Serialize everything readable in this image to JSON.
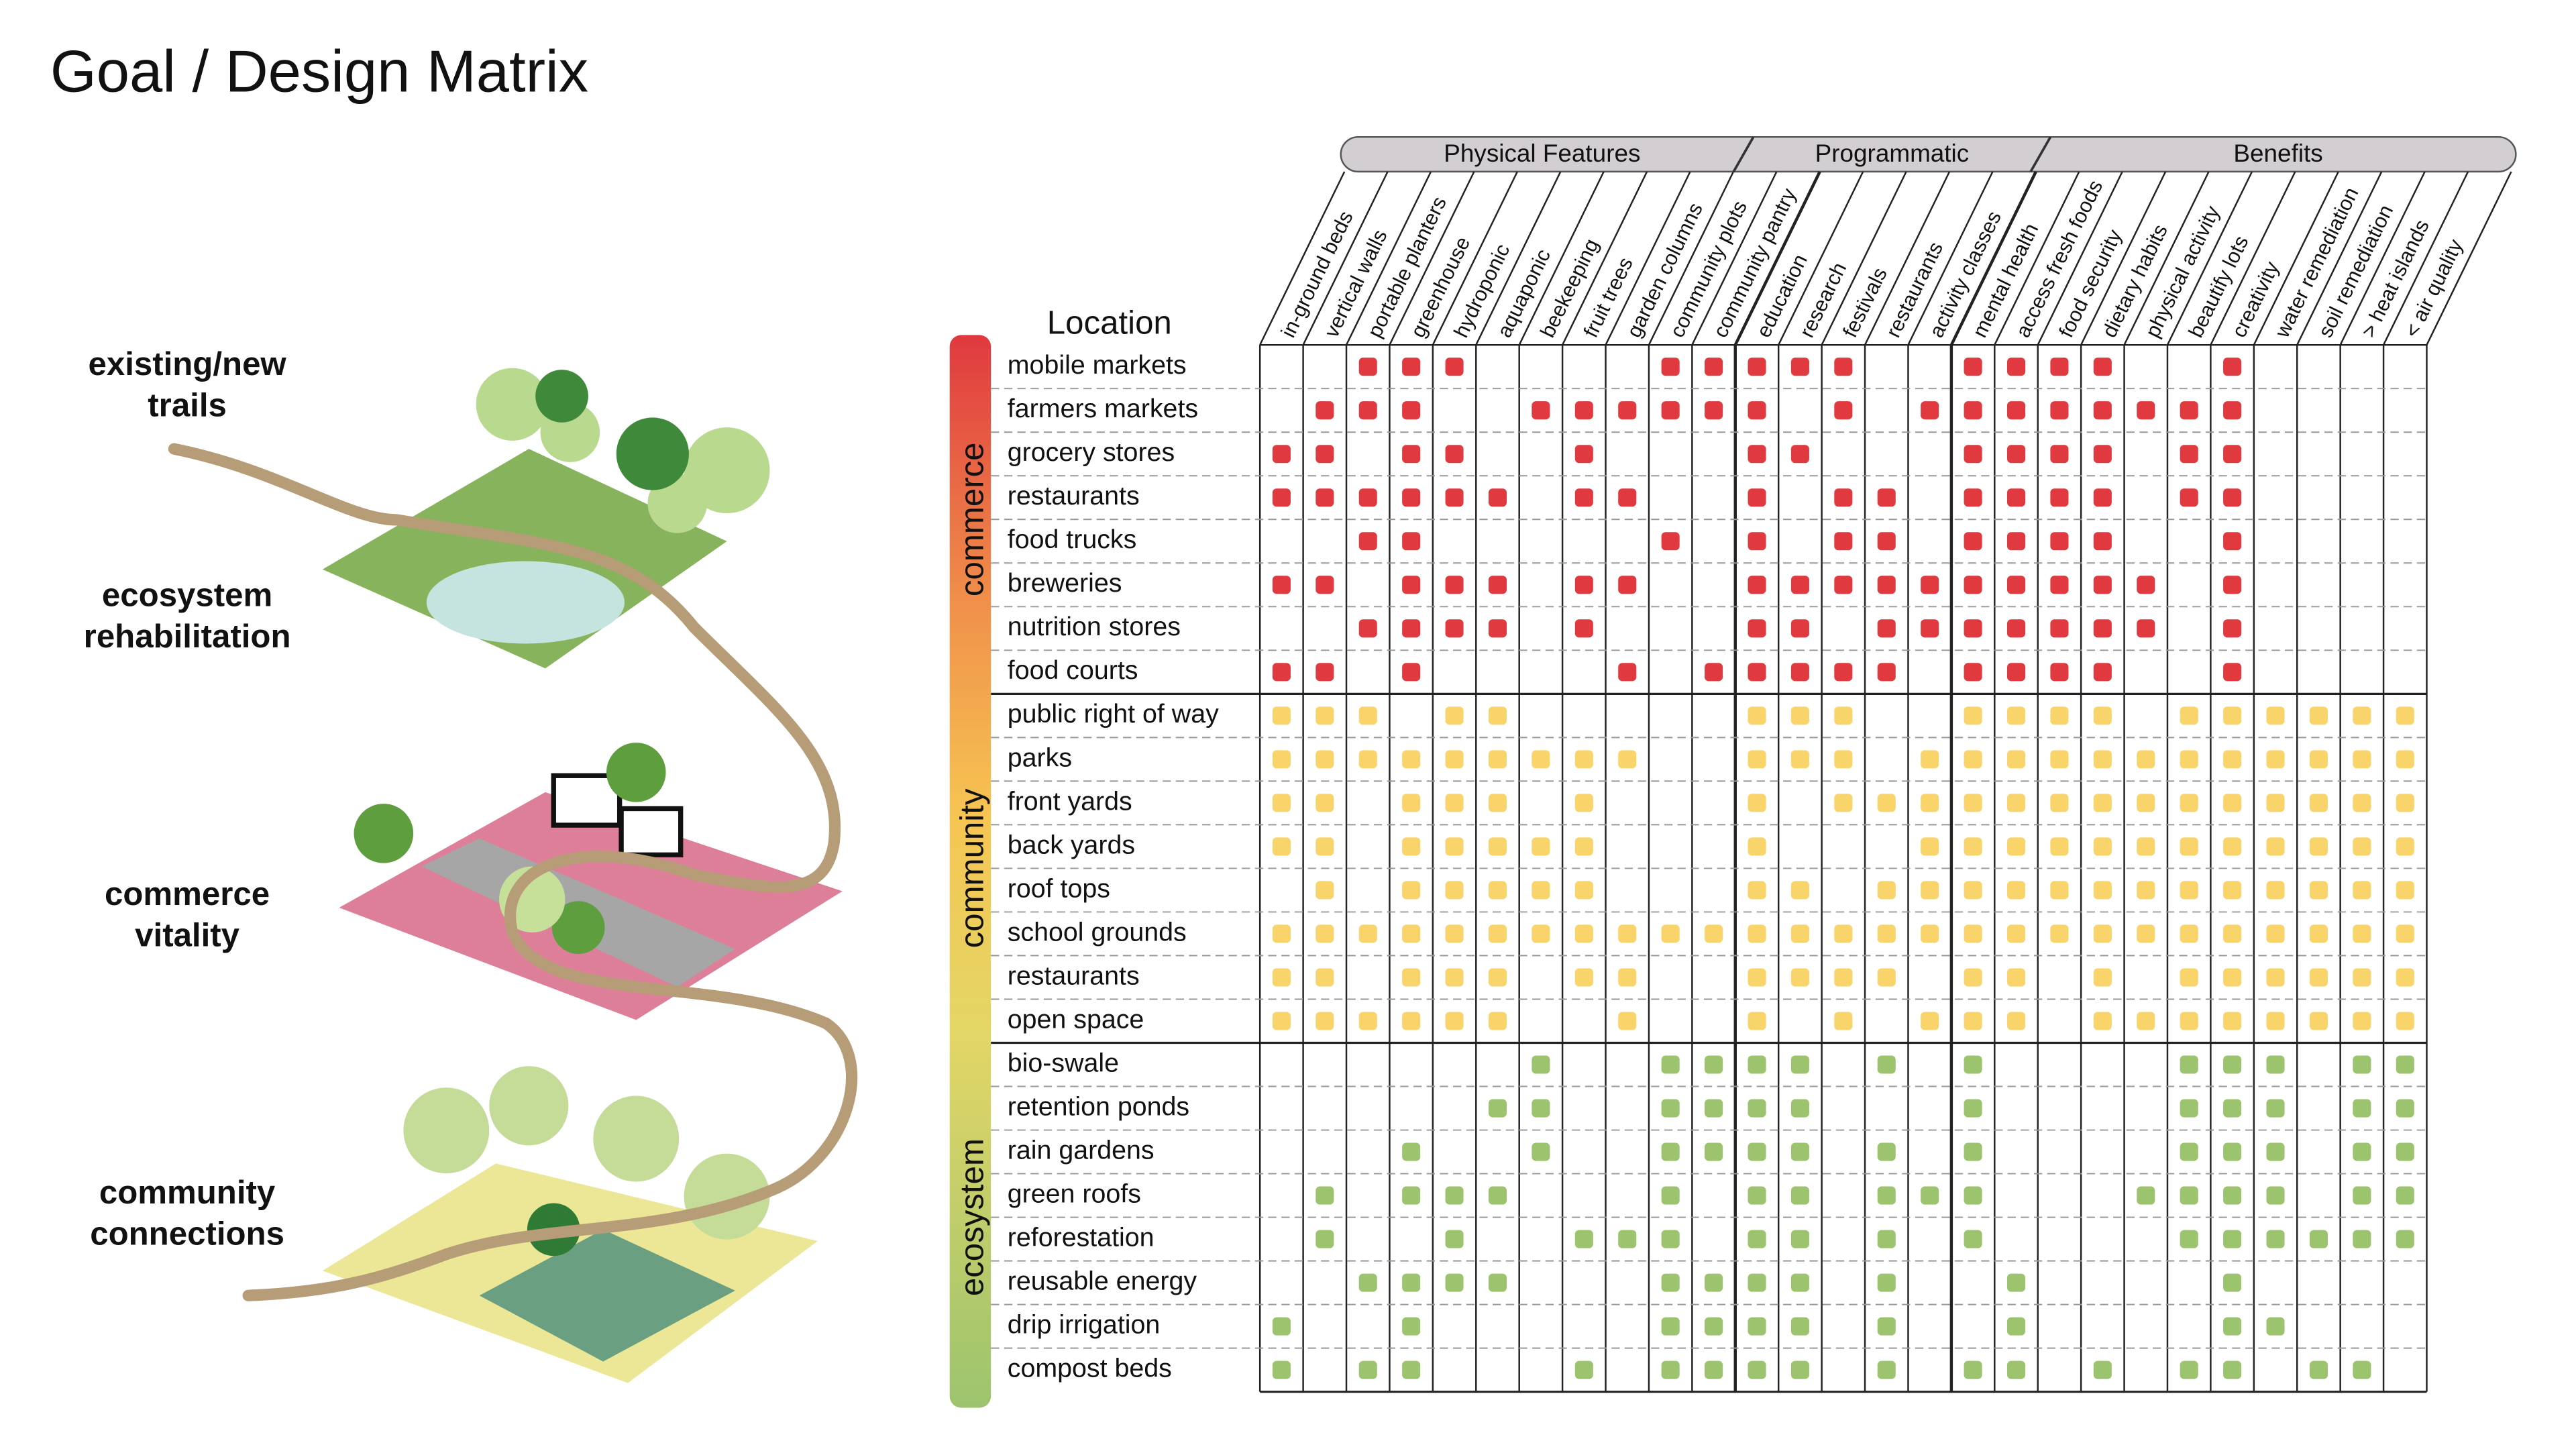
{
  "title": "Goal / Design Matrix",
  "goals": [
    [
      "existing/new",
      "trails"
    ],
    [
      "ecosystem",
      "rehabilitation"
    ],
    [
      "commerce",
      "vitality"
    ],
    [
      "community",
      "connections"
    ]
  ],
  "location_header": "Location",
  "column_groups": [
    {
      "label": "Physical Features",
      "columns": [
        "in-ground beds",
        "vertical walls",
        "portable planters",
        "greenhouse",
        "hydroponic",
        "aquaponic",
        "beekeeping",
        "fruit trees",
        "garden columns",
        "community plots",
        "community pantry"
      ]
    },
    {
      "label": "Programmatic",
      "columns": [
        "education",
        "research",
        "festivals",
        "restaurants",
        "activity classes"
      ]
    },
    {
      "label": "Benefits",
      "columns": [
        "mental health",
        "access fresh foods",
        "food security",
        "dietary habits",
        "physical activity",
        "beautify  lots",
        "creativity",
        "water remediation",
        "soil remediation",
        "> heat islands",
        "< air quality"
      ]
    }
  ],
  "row_groups": [
    {
      "label": "commerce",
      "color": "#e0393f",
      "rows": [
        {
          "label": "mobile markets",
          "marks": [
            2,
            3,
            4,
            9,
            10,
            11,
            12,
            13,
            16,
            17,
            18,
            19,
            22
          ]
        },
        {
          "label": "farmers markets",
          "marks": [
            1,
            2,
            3,
            6,
            7,
            8,
            9,
            10,
            11,
            13,
            15,
            16,
            17,
            18,
            19,
            20,
            21,
            22
          ]
        },
        {
          "label": "grocery stores",
          "marks": [
            0,
            1,
            3,
            4,
            7,
            11,
            12,
            16,
            17,
            18,
            19,
            21,
            22
          ]
        },
        {
          "label": "restaurants",
          "marks": [
            0,
            1,
            2,
            3,
            4,
            5,
            7,
            8,
            11,
            13,
            14,
            16,
            17,
            18,
            19,
            21,
            22
          ]
        },
        {
          "label": "food trucks",
          "marks": [
            2,
            3,
            9,
            11,
            13,
            14,
            16,
            17,
            18,
            19,
            22
          ]
        },
        {
          "label": "breweries",
          "marks": [
            0,
            1,
            3,
            4,
            5,
            7,
            8,
            11,
            12,
            13,
            14,
            15,
            16,
            17,
            18,
            19,
            20,
            22
          ]
        },
        {
          "label": "nutrition stores",
          "marks": [
            2,
            3,
            4,
            5,
            7,
            11,
            12,
            14,
            15,
            16,
            17,
            18,
            19,
            20,
            22
          ]
        },
        {
          "label": "food courts",
          "marks": [
            0,
            1,
            3,
            8,
            10,
            11,
            12,
            13,
            14,
            16,
            17,
            18,
            19,
            22
          ]
        }
      ]
    },
    {
      "label": "community",
      "color": "#f8d46a",
      "rows": [
        {
          "label": "public right of way",
          "marks": [
            0,
            1,
            2,
            4,
            5,
            11,
            12,
            13,
            16,
            17,
            18,
            19,
            21,
            22,
            23,
            24,
            25,
            26
          ]
        },
        {
          "label": "parks",
          "marks": [
            0,
            1,
            2,
            3,
            4,
            5,
            6,
            7,
            8,
            11,
            12,
            13,
            15,
            16,
            17,
            18,
            19,
            20,
            21,
            22,
            23,
            24,
            25,
            26
          ]
        },
        {
          "label": "front yards",
          "marks": [
            0,
            1,
            3,
            4,
            5,
            7,
            11,
            13,
            14,
            15,
            16,
            17,
            18,
            19,
            20,
            21,
            22,
            23,
            24,
            25,
            26
          ]
        },
        {
          "label": "back yards",
          "marks": [
            0,
            1,
            3,
            4,
            5,
            6,
            7,
            11,
            15,
            16,
            17,
            18,
            19,
            20,
            21,
            22,
            23,
            24,
            25,
            26
          ]
        },
        {
          "label": "roof tops",
          "marks": [
            1,
            3,
            4,
            5,
            6,
            7,
            11,
            12,
            14,
            15,
            16,
            17,
            18,
            19,
            20,
            21,
            22,
            23,
            24,
            25,
            26
          ]
        },
        {
          "label": "school grounds",
          "marks": [
            0,
            1,
            2,
            3,
            4,
            5,
            6,
            7,
            8,
            9,
            10,
            11,
            12,
            13,
            14,
            15,
            16,
            17,
            18,
            19,
            20,
            21,
            22,
            23,
            24,
            25,
            26
          ]
        },
        {
          "label": "restaurants",
          "marks": [
            0,
            1,
            3,
            4,
            5,
            7,
            8,
            11,
            12,
            13,
            14,
            16,
            17,
            19,
            21,
            22,
            23,
            24,
            25,
            26
          ]
        },
        {
          "label": "open space",
          "marks": [
            0,
            1,
            2,
            3,
            4,
            5,
            8,
            11,
            13,
            15,
            16,
            17,
            19,
            20,
            21,
            22,
            23,
            24,
            25,
            26
          ]
        }
      ]
    },
    {
      "label": "ecosystem",
      "color": "#9cc46e",
      "rows": [
        {
          "label": "bio-swale",
          "marks": [
            6,
            9,
            10,
            11,
            12,
            14,
            16,
            21,
            22,
            23,
            25,
            26
          ]
        },
        {
          "label": "retention ponds",
          "marks": [
            5,
            6,
            9,
            10,
            11,
            12,
            16,
            21,
            22,
            23,
            25,
            26
          ]
        },
        {
          "label": "rain gardens",
          "marks": [
            3,
            6,
            9,
            10,
            11,
            12,
            14,
            16,
            21,
            22,
            23,
            25,
            26
          ]
        },
        {
          "label": "green roofs",
          "marks": [
            1,
            3,
            4,
            5,
            9,
            11,
            12,
            14,
            15,
            16,
            20,
            21,
            22,
            23,
            25,
            26
          ]
        },
        {
          "label": "reforestation",
          "marks": [
            1,
            4,
            7,
            8,
            9,
            11,
            12,
            14,
            16,
            21,
            22,
            23,
            24,
            25,
            26
          ]
        },
        {
          "label": "reusable energy",
          "marks": [
            2,
            3,
            4,
            5,
            9,
            10,
            11,
            12,
            14,
            17,
            22
          ]
        },
        {
          "label": "drip irrigation",
          "marks": [
            0,
            3,
            9,
            10,
            11,
            12,
            14,
            17,
            22,
            23
          ]
        },
        {
          "label": "compost beds",
          "marks": [
            0,
            2,
            3,
            7,
            9,
            10,
            11,
            12,
            14,
            16,
            17,
            19,
            21,
            22,
            24,
            25
          ]
        }
      ]
    }
  ]
}
